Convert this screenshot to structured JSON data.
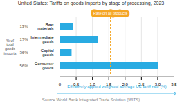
{
  "chart_data": {
    "type": "bar",
    "orientation": "horizontal",
    "title": "United States: Tariffs on goods imports by stage of processing, 2023",
    "categories": [
      "Raw\nmaterials",
      "Intermediate\ngoods",
      "Capital\ngoods",
      "Consumer\ngoods"
    ],
    "values": [
      0.42,
      1.18,
      0.37,
      3.02
    ],
    "color": "#29abe2",
    "share_labels": [
      "13%",
      "17%",
      "36%",
      "56%"
    ],
    "ylabel": "% of\ntotal\ngoods\nimports",
    "xlabel": "Effectively applied weighted average US tariff rate (%)",
    "xlim": [
      0,
      3.5
    ],
    "xticks": [
      0,
      0.5,
      {
        "value": 1,
        "label": "1.0"
      },
      1.5,
      {
        "value": 2,
        "label": "2.0"
      },
      2.5,
      {
        "value": 3,
        "label": "3.0"
      },
      3.5
    ],
    "grid": true,
    "annotations": [
      {
        "text": "Rate on all products",
        "x": 1.55,
        "color": "#f5a623"
      }
    ],
    "source": "Source World Bank Integrated Trade Solution (WITS)"
  }
}
